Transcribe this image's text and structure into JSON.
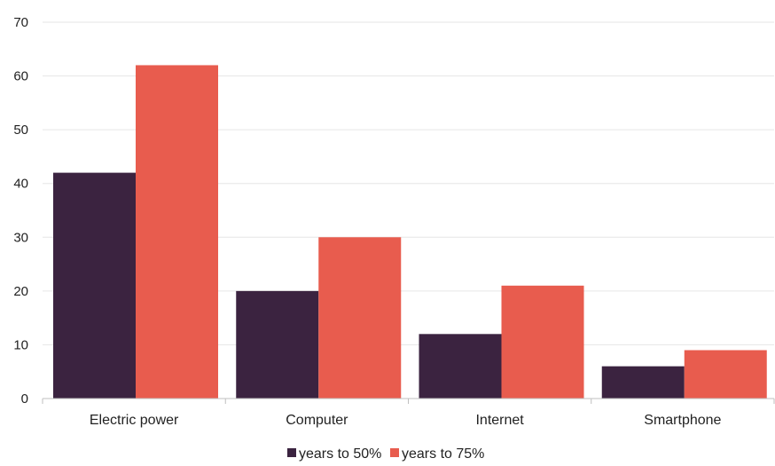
{
  "chart_data": {
    "type": "bar",
    "title": "",
    "xlabel": "",
    "ylabel": "",
    "categories": [
      "Electric power",
      "Computer",
      "Internet",
      "Smartphone"
    ],
    "series": [
      {
        "name": "years to 50%",
        "values": [
          42,
          20,
          12,
          6
        ],
        "color": "#3b2340"
      },
      {
        "name": "years to 75%",
        "values": [
          62,
          30,
          21,
          9
        ],
        "color": "#e85c4e"
      }
    ],
    "ylim": [
      0,
      70
    ],
    "yticks": [
      0,
      10,
      20,
      30,
      40,
      50,
      60,
      70
    ],
    "grid": true,
    "legend": "bottom-center",
    "colors": {
      "grid": "#e6e6e6",
      "axis": "#bfbfbf",
      "text": "#222222"
    }
  }
}
